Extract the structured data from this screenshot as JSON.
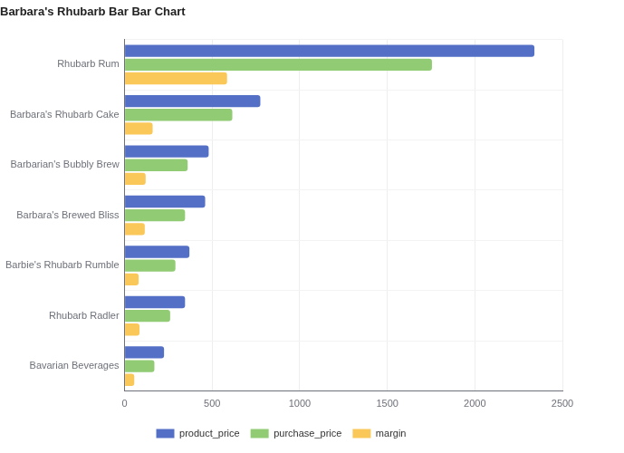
{
  "chart_data": {
    "type": "bar",
    "orientation": "horizontal",
    "title": "Barbara's Rhubarb Bar Bar Chart",
    "categories": [
      "Rhubarb Rum",
      "Barbara's Rhubarb Cake",
      "Barbarian's Bubbly Brew",
      "Barbara's Brewed Bliss",
      "Barbie's Rhubarb Rumble",
      "Rhubarb Radler",
      "Bavarian Beverages"
    ],
    "series": [
      {
        "name": "product_price",
        "color": "#5470c6",
        "values": [
          2340,
          775,
          480,
          460,
          370,
          345,
          225
        ]
      },
      {
        "name": "purchase_price",
        "color": "#91cc75",
        "values": [
          1755,
          615,
          360,
          345,
          290,
          260,
          170
        ]
      },
      {
        "name": "margin",
        "color": "#fac858",
        "values": [
          585,
          160,
          120,
          115,
          80,
          85,
          55
        ]
      }
    ],
    "xlim": [
      0,
      2500
    ],
    "xticks": [
      0,
      500,
      1000,
      1500,
      2000,
      2500
    ],
    "grid": true,
    "legend": "bottom"
  }
}
